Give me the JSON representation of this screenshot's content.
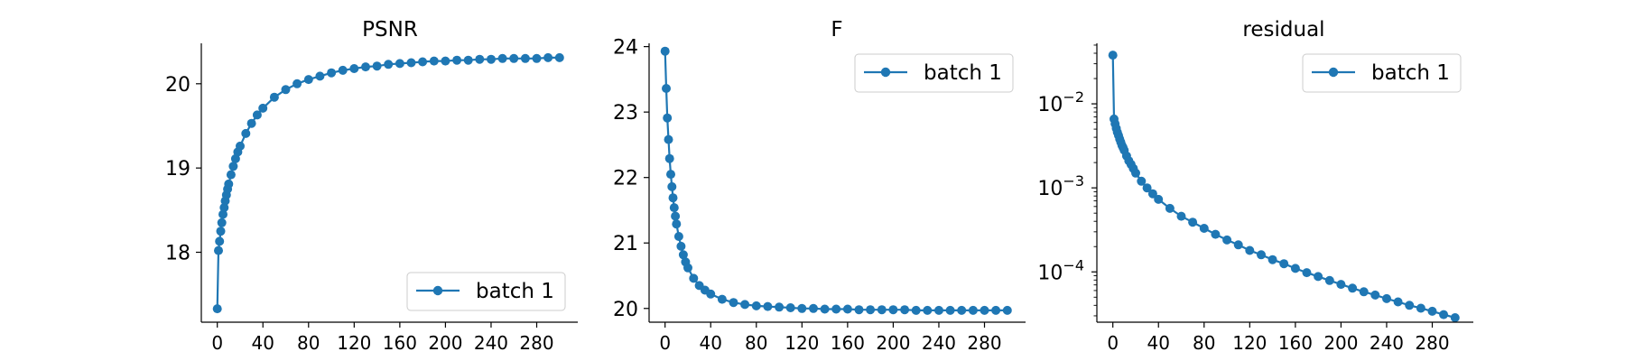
{
  "chart_data": [
    {
      "type": "line",
      "title": "PSNR",
      "scale": "linear",
      "legend_position": "lower-right",
      "x_ticks": [
        "0",
        "40",
        "80",
        "120",
        "160",
        "200",
        "240",
        "280"
      ],
      "x_tick_values": [
        0,
        40,
        80,
        120,
        160,
        200,
        240,
        280
      ],
      "xlim": [
        -14,
        316
      ],
      "y_ticks": [
        "18",
        "19",
        "20"
      ],
      "y_tick_values": [
        18,
        19,
        20
      ],
      "ylim": [
        17.17,
        20.48
      ],
      "series": [
        {
          "name": "batch 1",
          "color": "#1f77b4",
          "x": [
            0,
            1,
            2,
            3,
            4,
            5,
            6,
            7,
            8,
            9,
            10,
            12,
            14,
            16,
            18,
            20,
            25,
            30,
            35,
            40,
            50,
            60,
            70,
            80,
            90,
            100,
            110,
            120,
            130,
            140,
            150,
            160,
            170,
            180,
            190,
            200,
            210,
            220,
            230,
            240,
            250,
            260,
            270,
            280,
            290,
            300
          ],
          "y": [
            17.33,
            18.02,
            18.13,
            18.25,
            18.35,
            18.45,
            18.53,
            18.61,
            18.68,
            18.75,
            18.81,
            18.92,
            19.02,
            19.11,
            19.19,
            19.26,
            19.41,
            19.53,
            19.63,
            19.71,
            19.84,
            19.93,
            20.0,
            20.05,
            20.09,
            20.13,
            20.16,
            20.18,
            20.2,
            20.21,
            20.23,
            20.24,
            20.25,
            20.26,
            20.27,
            20.27,
            20.28,
            20.28,
            20.29,
            20.29,
            20.3,
            20.3,
            20.3,
            20.3,
            20.31,
            20.31
          ]
        }
      ]
    },
    {
      "type": "line",
      "title": "F",
      "scale": "linear",
      "legend_position": "upper-right",
      "x_ticks": [
        "0",
        "40",
        "80",
        "120",
        "160",
        "200",
        "240",
        "280"
      ],
      "x_tick_values": [
        0,
        40,
        80,
        120,
        160,
        200,
        240,
        280
      ],
      "xlim": [
        -14,
        316
      ],
      "y_ticks": [
        "20",
        "21",
        "22",
        "23",
        "24"
      ],
      "y_tick_values": [
        20,
        21,
        22,
        23,
        24
      ],
      "ylim": [
        19.79,
        24.05
      ],
      "series": [
        {
          "name": "batch 1",
          "color": "#1f77b4",
          "x": [
            0,
            1,
            2,
            3,
            4,
            5,
            6,
            7,
            8,
            9,
            10,
            12,
            14,
            16,
            18,
            20,
            25,
            30,
            35,
            40,
            50,
            60,
            70,
            80,
            90,
            100,
            110,
            120,
            130,
            140,
            150,
            160,
            170,
            180,
            190,
            200,
            210,
            220,
            230,
            240,
            250,
            260,
            270,
            280,
            290,
            300
          ],
          "y": [
            23.93,
            23.36,
            22.91,
            22.58,
            22.29,
            22.05,
            21.86,
            21.69,
            21.54,
            21.41,
            21.29,
            21.1,
            20.95,
            20.82,
            20.71,
            20.62,
            20.46,
            20.35,
            20.28,
            20.22,
            20.14,
            20.09,
            20.06,
            20.04,
            20.03,
            20.02,
            20.01,
            20.0,
            20.0,
            19.99,
            19.99,
            19.99,
            19.98,
            19.98,
            19.98,
            19.98,
            19.98,
            19.97,
            19.97,
            19.97,
            19.97,
            19.97,
            19.97,
            19.97,
            19.97,
            19.97
          ]
        }
      ]
    },
    {
      "type": "line",
      "title": "residual",
      "scale": "log",
      "legend_position": "upper-right",
      "x_ticks": [
        "0",
        "40",
        "80",
        "120",
        "160",
        "200",
        "240",
        "280"
      ],
      "x_tick_values": [
        0,
        40,
        80,
        120,
        160,
        200,
        240,
        280
      ],
      "xlim": [
        -14,
        316
      ],
      "y_ticks": [
        {
          "base": "10",
          "exp": "−2",
          "value": 0.01
        },
        {
          "base": "10",
          "exp": "−3",
          "value": 0.001
        },
        {
          "base": "10",
          "exp": "−4",
          "value": 0.0001
        }
      ],
      "ylim": [
        2.52e-05,
        0.0525
      ],
      "series": [
        {
          "name": "batch 1",
          "color": "#1f77b4",
          "x": [
            0,
            1,
            2,
            3,
            4,
            5,
            6,
            7,
            8,
            9,
            10,
            12,
            14,
            16,
            18,
            20,
            25,
            30,
            35,
            40,
            50,
            60,
            70,
            80,
            90,
            100,
            110,
            120,
            130,
            140,
            150,
            160,
            170,
            180,
            190,
            200,
            210,
            220,
            230,
            240,
            250,
            260,
            270,
            280,
            290,
            300
          ],
          "y": [
            0.038,
            0.0066,
            0.0058,
            0.0051,
            0.0046,
            0.0042,
            0.0038,
            0.0035,
            0.0032,
            0.003,
            0.0028,
            0.0024,
            0.0021,
            0.0019,
            0.0017,
            0.0015,
            0.0012,
            0.001,
            0.00085,
            0.00073,
            0.00057,
            0.00046,
            0.00039,
            0.00033,
            0.00028,
            0.00024,
            0.00021,
            0.00018,
            0.00016,
            0.00014,
            0.000125,
            0.00011,
            9.8e-05,
            8.8e-05,
            7.9e-05,
            7.1e-05,
            6.4e-05,
            5.8e-05,
            5.3e-05,
            4.8e-05,
            4.4e-05,
            4e-05,
            3.7e-05,
            3.4e-05,
            3.1e-05,
            2.85e-05
          ]
        }
      ]
    }
  ]
}
